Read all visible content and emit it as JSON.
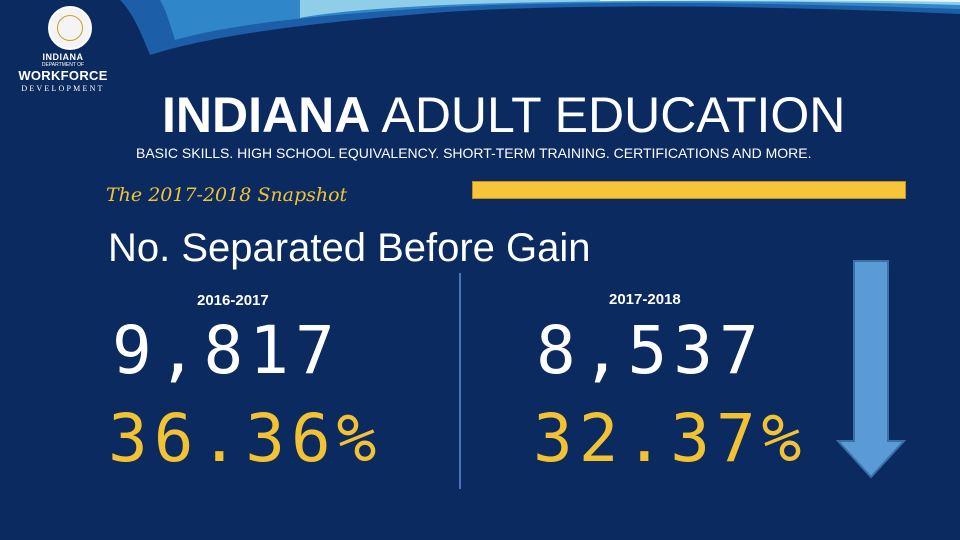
{
  "header": {
    "logo": {
      "state": "INDIANA",
      "dept": "DEPARTMENT OF",
      "line1": "WORKFORCE",
      "line2": "DEVELOPMENT"
    },
    "title_bold": "INDIANA",
    "title_rest": "ADULT EDUCATION",
    "subtitle": "BASIC SKILLS. HIGH SCHOOL EQUIVALENCY. SHORT-TERM TRAINING. CERTIFICATIONS AND MORE."
  },
  "snapshot_label": "The 2017-2018 Snapshot",
  "metric_title": "No. Separated Before Gain",
  "columns": [
    {
      "year": "2016-2017",
      "count": "9,817",
      "percent": "36.36%"
    },
    {
      "year": "2017-2018",
      "count": "8,537",
      "percent": "32.37%"
    }
  ],
  "trend": {
    "direction": "down",
    "icon": "down-arrow-icon"
  },
  "colors": {
    "background": "#0b2a60",
    "accent_gold": "#f2c233",
    "bar_gold": "#f6c53a",
    "arrow_blue": "#5b9bd5"
  }
}
